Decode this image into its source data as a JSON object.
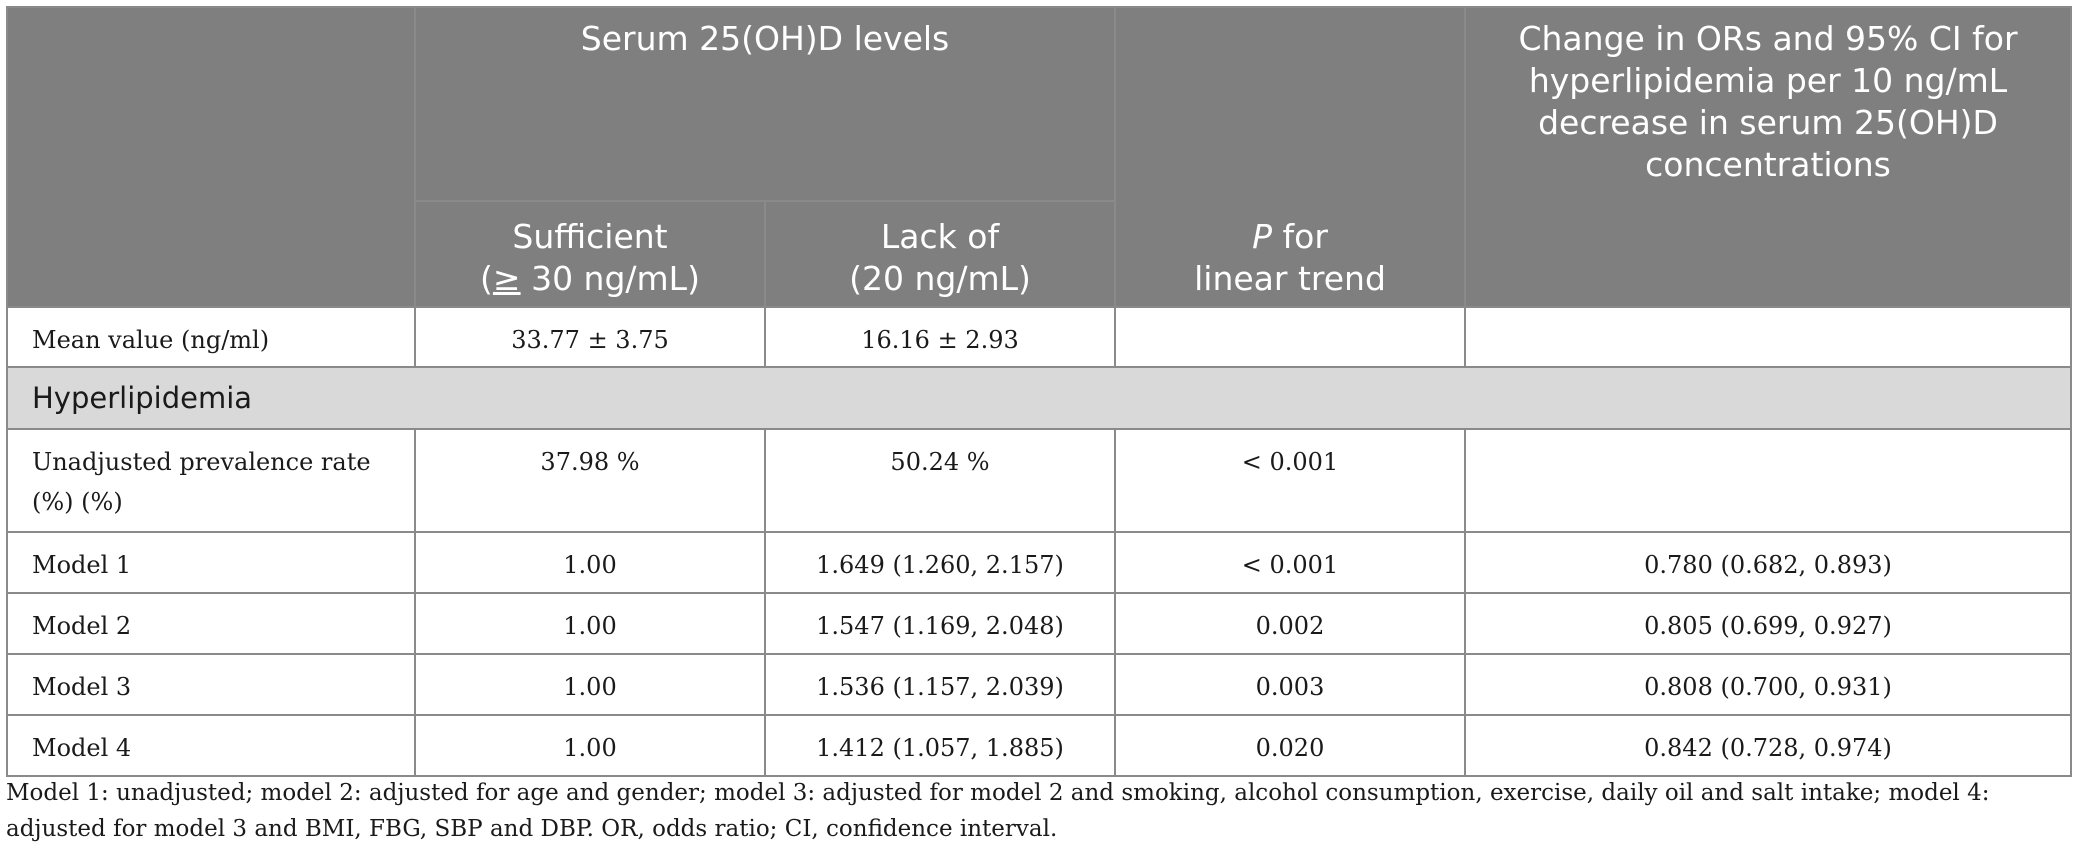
{
  "header": {
    "group_title": "Serum 25(OH)D levels",
    "sufficient_line1": "Sufficient",
    "sufficient_symbol": "≥",
    "sufficient_value": "30 ng/mL)",
    "sufficient_open": "(",
    "lack_line1": "Lack of",
    "lack_line2": "(20 ng/mL)",
    "p_italic": "P",
    "p_rest": " for",
    "p_line2": "linear trend",
    "change_title": "Change in ORs and 95% CI for hyperlipidemia per 10 ng/mL decrease in serum 25(OH)D concentrations"
  },
  "mean_row": {
    "label": "Mean value (ng/ml)",
    "sufficient": "33.77 ± 3.75",
    "lack": "16.16 ± 2.93",
    "p": "",
    "change": ""
  },
  "section_title": "Hyperlipidemia",
  "prevalence_row": {
    "label": "Unadjusted prevalence rate (%) (%)",
    "sufficient": "37.98 %",
    "lack": "50.24 %",
    "p": "< 0.001",
    "change": ""
  },
  "model_rows": [
    {
      "label": "Model 1",
      "sufficient": "1.00",
      "lack": "1.649 (1.260, 2.157)",
      "p": "< 0.001",
      "change": "0.780 (0.682, 0.893)"
    },
    {
      "label": "Model 2",
      "sufficient": "1.00",
      "lack": "1.547 (1.169, 2.048)",
      "p": "0.002",
      "change": "0.805 (0.699, 0.927)"
    },
    {
      "label": "Model 3",
      "sufficient": "1.00",
      "lack": "1.536 (1.157, 2.039)",
      "p": "0.003",
      "change": "0.808 (0.700, 0.931)"
    },
    {
      "label": "Model 4",
      "sufficient": "1.00",
      "lack": "1.412 (1.057, 1.885)",
      "p": "0.020",
      "change": "0.842 (0.728, 0.974)"
    }
  ],
  "footnote": "Model 1: unadjusted; model 2: adjusted for age and gender; model 3: adjusted for model 2 and smoking, alcohol consumption, exercise, daily oil and salt intake; model 4: adjusted for model 3 and BMI, FBG, SBP and DBP. OR, odds ratio; CI, confidence interval."
}
